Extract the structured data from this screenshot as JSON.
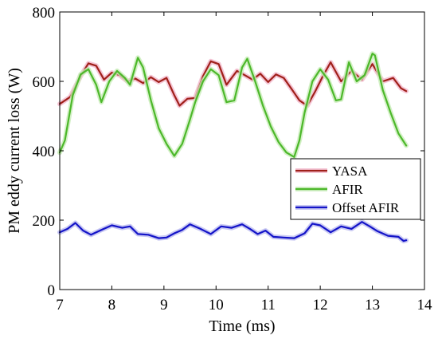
{
  "chart_data": {
    "type": "line",
    "xlabel": "Time (ms)",
    "ylabel": "PM eddy current loss (W)",
    "xlim": [
      7,
      14
    ],
    "ylim": [
      0,
      800
    ],
    "xticks": [
      "7",
      "8",
      "9",
      "10",
      "11",
      "12",
      "13",
      "14"
    ],
    "yticks": [
      "0",
      "200",
      "400",
      "600",
      "800"
    ],
    "grid": false,
    "legend_position": "center-right",
    "series": [
      {
        "name": "YASA",
        "color": "#a0201a",
        "halo": "#f2b8cc",
        "x": [
          7.0,
          7.2,
          7.4,
          7.55,
          7.7,
          7.85,
          8.0,
          8.15,
          8.3,
          8.45,
          8.6,
          8.75,
          8.9,
          9.05,
          9.2,
          9.3,
          9.45,
          9.6,
          9.75,
          9.9,
          10.05,
          10.2,
          10.4,
          10.55,
          10.7,
          10.85,
          11.0,
          11.15,
          11.3,
          11.45,
          11.6,
          11.75,
          11.9,
          12.05,
          12.2,
          12.4,
          12.6,
          12.8,
          13.0,
          13.2,
          13.4,
          13.55,
          13.65
        ],
        "y": [
          535,
          555,
          615,
          652,
          645,
          605,
          625,
          618,
          600,
          608,
          595,
          612,
          598,
          610,
          560,
          530,
          550,
          552,
          615,
          658,
          650,
          590,
          630,
          618,
          605,
          622,
          598,
          620,
          610,
          578,
          545,
          530,
          570,
          615,
          655,
          600,
          630,
          605,
          650,
          600,
          610,
          580,
          572
        ]
      },
      {
        "name": "AFIR",
        "color": "#4cb82a",
        "halo": "#c8ecb8",
        "x": [
          7.0,
          7.1,
          7.25,
          7.4,
          7.55,
          7.7,
          7.8,
          7.95,
          8.1,
          8.25,
          8.35,
          8.5,
          8.6,
          8.75,
          8.9,
          9.05,
          9.2,
          9.35,
          9.5,
          9.6,
          9.75,
          9.9,
          10.05,
          10.2,
          10.35,
          10.5,
          10.6,
          10.75,
          10.9,
          11.05,
          11.2,
          11.35,
          11.5,
          11.6,
          11.7,
          11.85,
          12.0,
          12.15,
          12.3,
          12.4,
          12.55,
          12.7,
          12.85,
          13.0,
          13.05,
          13.2,
          13.35,
          13.5,
          13.65
        ],
        "y": [
          395,
          430,
          560,
          620,
          635,
          590,
          540,
          600,
          630,
          610,
          590,
          668,
          640,
          545,
          465,
          420,
          385,
          420,
          490,
          540,
          600,
          635,
          618,
          540,
          545,
          640,
          665,
          600,
          530,
          470,
          425,
          395,
          382,
          430,
          510,
          600,
          635,
          605,
          545,
          548,
          655,
          600,
          618,
          680,
          675,
          575,
          510,
          450,
          415
        ]
      },
      {
        "name": "Offset AFIR",
        "color": "#1414c8",
        "halo": "#bcbcf0",
        "x": [
          7.0,
          7.15,
          7.3,
          7.45,
          7.6,
          7.8,
          8.0,
          8.2,
          8.35,
          8.5,
          8.7,
          8.9,
          9.05,
          9.2,
          9.35,
          9.5,
          9.7,
          9.9,
          10.1,
          10.3,
          10.5,
          10.65,
          10.8,
          10.95,
          11.1,
          11.3,
          11.5,
          11.7,
          11.85,
          12.0,
          12.2,
          12.4,
          12.6,
          12.8,
          12.95,
          13.1,
          13.3,
          13.5,
          13.6,
          13.65
        ],
        "y": [
          165,
          175,
          192,
          170,
          158,
          172,
          185,
          178,
          182,
          160,
          158,
          148,
          150,
          162,
          172,
          188,
          175,
          160,
          182,
          178,
          188,
          175,
          160,
          170,
          152,
          150,
          148,
          162,
          190,
          185,
          165,
          182,
          175,
          195,
          182,
          168,
          155,
          152,
          140,
          142
        ]
      }
    ]
  }
}
